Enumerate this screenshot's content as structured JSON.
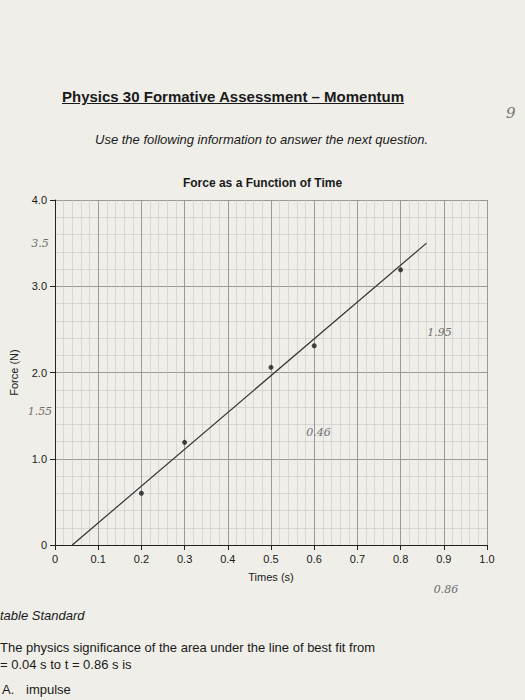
{
  "page": {
    "header": "Physics 30 Formative Assessment – Momentum",
    "instruction": "Use the following information to answer the next question.",
    "page_mark": "9",
    "standard": "table Standard",
    "question": [
      "The physics significance of the area under the line of best fit from",
      "= 0.04 s to t = 0.86 s is"
    ],
    "answer": {
      "letter": "A.",
      "text": "impulse"
    }
  },
  "chart_data": {
    "type": "scatter",
    "title": "Force as a Function of Time",
    "x_label": "Times (s)",
    "y_label": "Force (N)",
    "series": [
      {
        "type": "scatter",
        "color": "#1a1a1a",
        "marker": "circle",
        "x": [
          0.2,
          0.3,
          0.5,
          0.6,
          0.8
        ],
        "values": [
          0.6,
          1.19,
          2.06,
          2.31,
          3.19
        ]
      },
      {
        "type": "line",
        "color": "#333333",
        "line_style": "solid",
        "x": [
          0.04,
          0.86
        ],
        "values": [
          0,
          3.5
        ]
      }
    ],
    "xlim": [
      0,
      1
    ],
    "ylim": [
      0,
      4
    ],
    "xticks": [
      0,
      0.1,
      0.2,
      0.3,
      0.4,
      0.5,
      0.6,
      0.7,
      0.8,
      0.9,
      {
        "value": 1,
        "label": "1.0"
      }
    ],
    "yticks": [
      0,
      {
        "value": 1,
        "label": "1.0"
      },
      {
        "value": 2,
        "label": "2.0"
      },
      {
        "value": 3,
        "label": "3.0"
      },
      {
        "value": 4,
        "label": "4.0"
      }
    ],
    "grid": true,
    "annotations": [
      {
        "text": "3.5",
        "x": -0.035,
        "y": 3.5
      },
      {
        "text": "1.55",
        "x": -0.035,
        "y": 1.55
      },
      {
        "text": "0.46",
        "x": 0.61,
        "y": 1.31
      },
      {
        "text": "1.95",
        "x": 0.89,
        "y": 2.46
      },
      {
        "text": "0.86",
        "x": 0.905,
        "y": -0.52
      }
    ]
  }
}
